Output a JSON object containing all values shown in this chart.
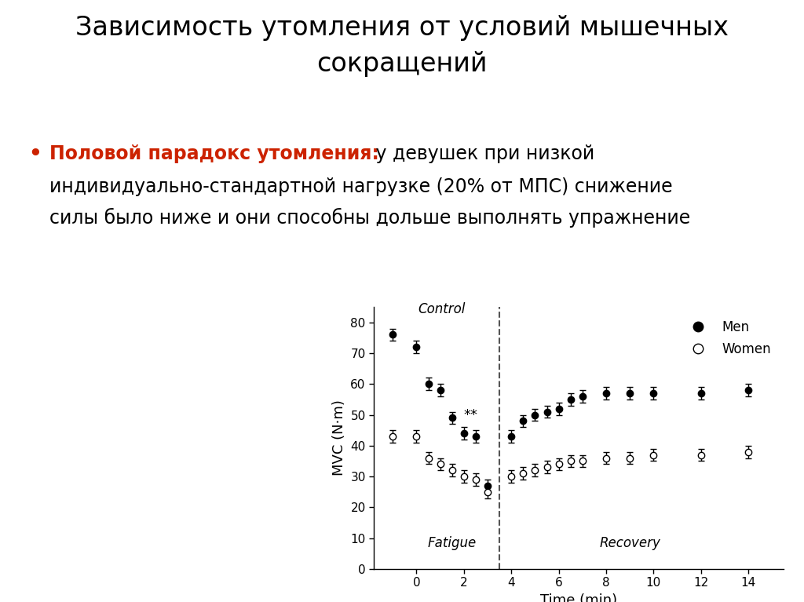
{
  "title_line1": "Зависимость утомления от условий мышечных",
  "title_line2": "сокращений",
  "title_fontsize": 24,
  "title_color": "#000000",
  "bullet_red_text": "Половой парадокс утомления:",
  "bullet_black1": "   у девушек при низкой",
  "bullet_black2": "индивидуально-стандартной нагрузке (20% от МПС) снижение",
  "bullet_black3": "силы было ниже и они способны дольше выполнять упражнение",
  "bullet_fontsize": 17,
  "bg_color": "#ffffff",
  "men_x": [
    -1,
    0,
    0.5,
    1,
    1.5,
    2,
    2.5,
    3,
    4,
    4.5,
    5,
    5.5,
    6,
    6.5,
    7,
    8,
    9,
    10,
    12,
    14
  ],
  "men_y": [
    76,
    72,
    60,
    58,
    49,
    44,
    43,
    27,
    43,
    48,
    50,
    51,
    52,
    55,
    56,
    57,
    57,
    57,
    57,
    58
  ],
  "men_yerr": [
    2,
    2,
    2,
    2,
    2,
    2,
    2,
    2,
    2,
    2,
    2,
    2,
    2,
    2,
    2,
    2,
    2,
    2,
    2,
    2
  ],
  "women_x": [
    -1,
    0,
    0.5,
    1,
    1.5,
    2,
    2.5,
    3,
    4,
    4.5,
    5,
    5.5,
    6,
    6.5,
    7,
    8,
    9,
    10,
    12,
    14
  ],
  "women_y": [
    43,
    43,
    36,
    34,
    32,
    30,
    29,
    25,
    30,
    31,
    32,
    33,
    34,
    35,
    35,
    36,
    36,
    37,
    37,
    38
  ],
  "women_yerr": [
    2,
    2,
    2,
    2,
    2,
    2,
    2,
    2,
    2,
    2,
    2,
    2,
    2,
    2,
    2,
    2,
    2,
    2,
    2,
    2
  ],
  "xlabel": "Time (min)",
  "ylabel": "MVC (N·m)",
  "xlim": [
    -1.8,
    15.5
  ],
  "ylim": [
    0,
    85
  ],
  "xticks": [
    0,
    2,
    4,
    6,
    8,
    10,
    12,
    14
  ],
  "yticks": [
    0,
    10,
    20,
    30,
    40,
    50,
    60,
    70,
    80
  ],
  "control_label": "Control",
  "fatigue_label": "Fatigue",
  "recovery_label": "Recovery",
  "dashed_x": 3.5,
  "asterisk_x": 2.3,
  "asterisk_y": 50,
  "legend_men": "Men",
  "legend_women": "Women"
}
